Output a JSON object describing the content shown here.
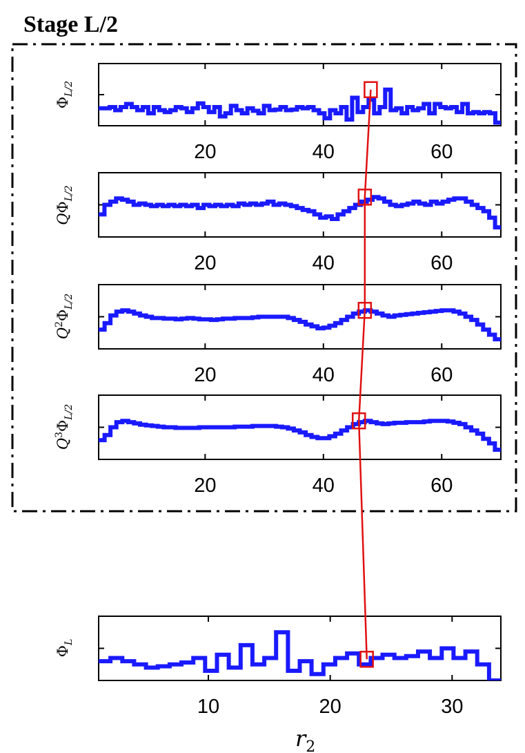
{
  "chart_data": {
    "type": "line",
    "title": "Stage L/2",
    "xlabel": "r2",
    "panels": [
      {
        "ylabel": "Φ",
        "ylabel_sup": "",
        "ylabel_sub": "L/2",
        "xlim": [
          2,
          70
        ],
        "ylim": [
          0,
          1
        ],
        "xticks": [
          20,
          40,
          60
        ],
        "highlight_x": 48,
        "highlight_y": 0.58,
        "values": [
          0.28,
          0.28,
          0.3,
          0.25,
          0.3,
          0.35,
          0.3,
          0.25,
          0.3,
          0.2,
          0.3,
          0.25,
          0.22,
          0.25,
          0.3,
          0.28,
          0.22,
          0.28,
          0.36,
          0.3,
          0.22,
          0.3,
          0.15,
          0.2,
          0.32,
          0.25,
          0.2,
          0.28,
          0.24,
          0.2,
          0.32,
          0.25,
          0.26,
          0.3,
          0.25,
          0.26,
          0.3,
          0.28,
          0.3,
          0.25,
          0.2,
          0.12,
          0.25,
          0.2,
          0.3,
          0.1,
          0.45,
          0.22,
          0.3,
          0.42,
          0.2,
          0.3,
          0.58,
          0.25,
          0.28,
          0.2,
          0.3,
          0.25,
          0.28,
          0.35,
          0.2,
          0.35,
          0.3,
          0.28,
          0.3,
          0.22,
          0.35,
          0.2,
          0.22,
          0.2,
          0.22,
          0.2,
          0.05
        ]
      },
      {
        "ylabel": "Φ",
        "ylabel_sup": "",
        "ylabel_pre": "Q",
        "ylabel_sub": "L/2",
        "xlim": [
          2,
          70
        ],
        "ylim": [
          0,
          1
        ],
        "xticks": [
          20,
          40,
          60
        ],
        "highlight_x": 47,
        "highlight_y": 0.62,
        "values": [
          0.35,
          0.5,
          0.55,
          0.6,
          0.58,
          0.55,
          0.5,
          0.52,
          0.5,
          0.48,
          0.5,
          0.48,
          0.5,
          0.48,
          0.5,
          0.48,
          0.5,
          0.45,
          0.5,
          0.48,
          0.5,
          0.48,
          0.5,
          0.48,
          0.52,
          0.5,
          0.52,
          0.5,
          0.52,
          0.55,
          0.5,
          0.52,
          0.5,
          0.48,
          0.45,
          0.42,
          0.4,
          0.35,
          0.3,
          0.32,
          0.28,
          0.35,
          0.4,
          0.45,
          0.5,
          0.55,
          0.58,
          0.62,
          0.6,
          0.55,
          0.5,
          0.48,
          0.5,
          0.52,
          0.55,
          0.52,
          0.5,
          0.55,
          0.52,
          0.55,
          0.58,
          0.6,
          0.6,
          0.55,
          0.5,
          0.45,
          0.4,
          0.3,
          0.15
        ]
      },
      {
        "ylabel": "Φ",
        "ylabel_sup": "2",
        "ylabel_pre": "Q",
        "ylabel_sub": "L/2",
        "xlim": [
          2,
          70
        ],
        "ylim": [
          0,
          1
        ],
        "xticks": [
          20,
          40,
          60
        ],
        "highlight_x": 47,
        "highlight_y": 0.6,
        "values": [
          0.3,
          0.4,
          0.52,
          0.58,
          0.6,
          0.58,
          0.55,
          0.52,
          0.5,
          0.48,
          0.48,
          0.47,
          0.47,
          0.46,
          0.47,
          0.48,
          0.47,
          0.46,
          0.46,
          0.45,
          0.46,
          0.47,
          0.47,
          0.48,
          0.48,
          0.48,
          0.49,
          0.5,
          0.5,
          0.5,
          0.5,
          0.5,
          0.48,
          0.45,
          0.42,
          0.38,
          0.35,
          0.32,
          0.33,
          0.36,
          0.4,
          0.45,
          0.5,
          0.55,
          0.58,
          0.6,
          0.58,
          0.55,
          0.52,
          0.5,
          0.52,
          0.53,
          0.54,
          0.55,
          0.56,
          0.57,
          0.58,
          0.59,
          0.6,
          0.6,
          0.58,
          0.55,
          0.5,
          0.45,
          0.38,
          0.3,
          0.22,
          0.15
        ]
      },
      {
        "ylabel": "Φ",
        "ylabel_sup": "3",
        "ylabel_pre": "Q",
        "ylabel_sub": "L/2",
        "xlim": [
          2,
          70
        ],
        "ylim": [
          0,
          1
        ],
        "xticks": [
          20,
          40,
          60
        ],
        "highlight_x": 46,
        "highlight_y": 0.6,
        "values": [
          0.3,
          0.38,
          0.5,
          0.58,
          0.6,
          0.58,
          0.56,
          0.54,
          0.53,
          0.52,
          0.51,
          0.5,
          0.5,
          0.49,
          0.49,
          0.49,
          0.49,
          0.5,
          0.5,
          0.5,
          0.5,
          0.5,
          0.5,
          0.51,
          0.51,
          0.51,
          0.52,
          0.52,
          0.52,
          0.52,
          0.51,
          0.5,
          0.48,
          0.45,
          0.42,
          0.38,
          0.35,
          0.33,
          0.33,
          0.36,
          0.4,
          0.45,
          0.5,
          0.55,
          0.58,
          0.6,
          0.58,
          0.56,
          0.55,
          0.56,
          0.57,
          0.57,
          0.58,
          0.58,
          0.58,
          0.59,
          0.6,
          0.6,
          0.6,
          0.59,
          0.57,
          0.55,
          0.5,
          0.45,
          0.4,
          0.32,
          0.25,
          0.15
        ]
      },
      {
        "ylabel": "Φ",
        "ylabel_sup": "",
        "ylabel_sub": "L",
        "xlim": [
          1,
          34
        ],
        "ylim": [
          0,
          1
        ],
        "xticks": [
          10,
          20,
          30
        ],
        "highlight_x": 23,
        "highlight_y": 0.33,
        "values": [
          0.3,
          0.35,
          0.3,
          0.25,
          0.2,
          0.22,
          0.25,
          0.28,
          0.35,
          0.15,
          0.4,
          0.2,
          0.55,
          0.25,
          0.35,
          0.75,
          0.15,
          0.3,
          0.1,
          0.25,
          0.35,
          0.42,
          0.25,
          0.35,
          0.4,
          0.35,
          0.38,
          0.45,
          0.35,
          0.5,
          0.35,
          0.45,
          0.25,
          0.0
        ]
      }
    ]
  }
}
